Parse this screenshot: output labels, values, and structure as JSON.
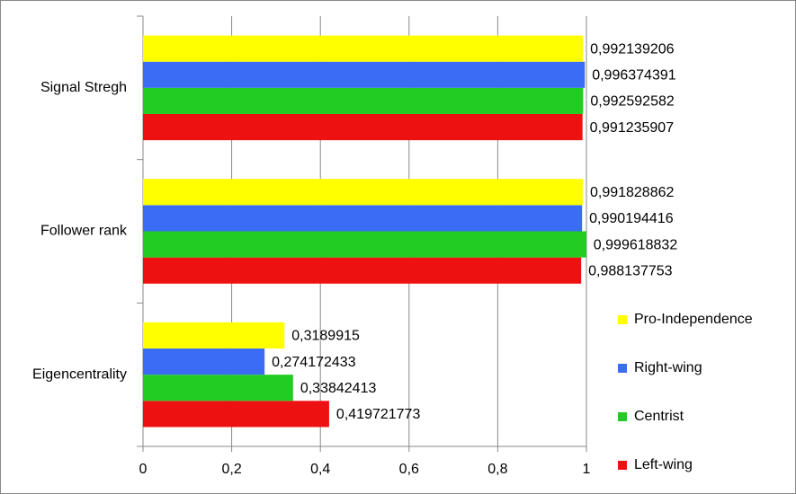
{
  "chart_data": {
    "type": "bar",
    "orientation": "horizontal",
    "categories": [
      "Signal Stregh",
      "Follower rank",
      "Eigencentrality"
    ],
    "series": [
      {
        "name": "Left-wing",
        "color": "#ee1111",
        "values": [
          0.991235907,
          0.988137753,
          0.419721773
        ],
        "value_labels": [
          "0,991235907",
          "0,988137753",
          "0,419721773"
        ]
      },
      {
        "name": "Centrist",
        "color": "#22cc22",
        "values": [
          0.992592582,
          0.999618832,
          0.33842413
        ],
        "value_labels": [
          "0,992592582",
          "0,999618832",
          "0,33842413"
        ]
      },
      {
        "name": "Right-wing",
        "color": "#3a6cf4",
        "values": [
          0.996374391,
          0.990194416,
          0.274172433
        ],
        "value_labels": [
          "0,996374391",
          "0,990194416",
          "0,274172433"
        ]
      },
      {
        "name": "Pro-Independence",
        "color": "#ffff00",
        "values": [
          0.992139206,
          0.991828862,
          0.3189915
        ],
        "value_labels": [
          "0,992139206",
          "0,991828862",
          "0,3189915"
        ]
      }
    ],
    "xlim": [
      0,
      1
    ],
    "xticks": [
      0,
      {
        "value": 0.2,
        "label": "0,2"
      },
      {
        "value": 0.4,
        "label": "0,4"
      },
      {
        "value": 0.6,
        "label": "0,6"
      },
      {
        "value": 0.8,
        "label": "0,8"
      },
      1
    ],
    "grid": true,
    "legend": "right"
  }
}
